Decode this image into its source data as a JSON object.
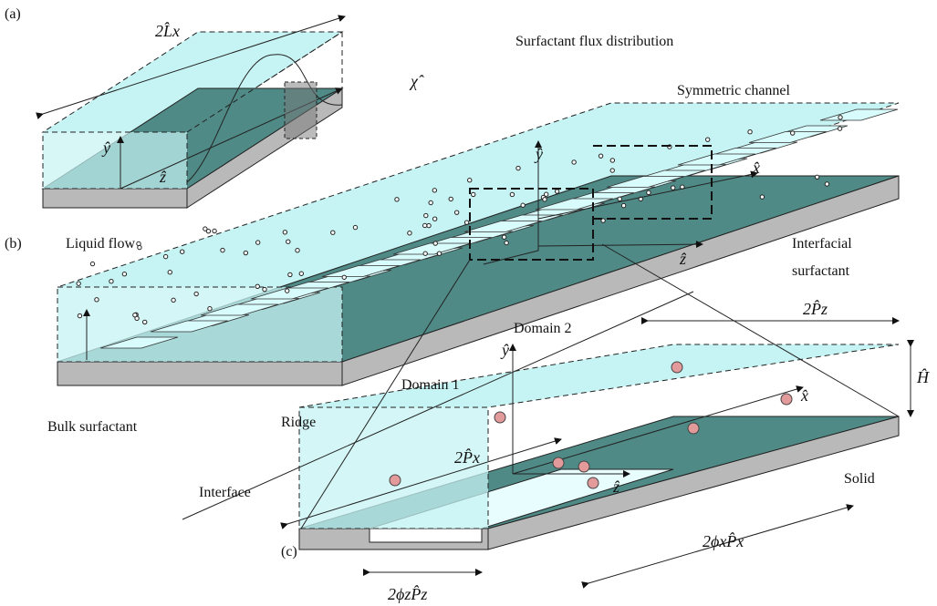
{
  "panel_a": {
    "tag": "(a)",
    "length": "2L̂x",
    "flux": "Surfactant flux distribution",
    "chi": "χ̂",
    "y": "ŷ",
    "z": "ẑ",
    "flow": "Liquid flow"
  },
  "panel_b": {
    "tag": "(b)",
    "title": "Symmetric channel",
    "y": "ŷ",
    "x": "x̂",
    "z": "ẑ",
    "interfacial": [
      "Interfacial",
      "surfactant"
    ],
    "bulk": "Bulk surfactant"
  },
  "panel_c": {
    "tag": "(c)",
    "domain1": "Domain 1",
    "domain2": "Domain 2",
    "pz": "2P̂z",
    "h": "Ĥ",
    "y": "ŷ",
    "x": "x̂",
    "z": "ẑ",
    "px": "2P̂x",
    "ridge": "Ridge",
    "interface": "Interface",
    "solid": "Solid",
    "phix": "2ϕxP̂x",
    "phiz": "2ϕzP̂z"
  }
}
